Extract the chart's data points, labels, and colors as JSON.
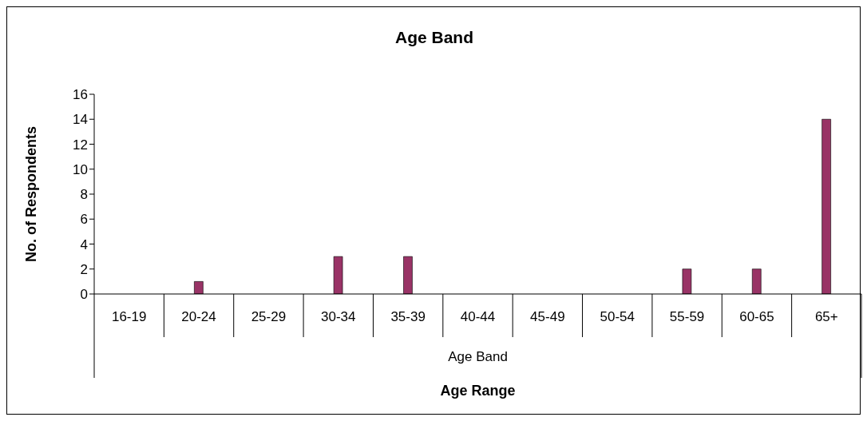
{
  "chart_data": {
    "type": "bar",
    "title": "Age Band",
    "xlabel": "Age Range",
    "ylabel": "No. of Respondents",
    "categories": [
      "16-19",
      "20-24",
      "25-29",
      "30-34",
      "35-39",
      "40-44",
      "45-49",
      "50-54",
      "55-59",
      "60-65",
      "65+"
    ],
    "values": [
      0,
      1,
      0,
      3,
      3,
      0,
      0,
      0,
      2,
      2,
      14
    ],
    "color": "#993366",
    "ylim": [
      0,
      16
    ],
    "yticks": [
      0,
      2,
      4,
      6,
      8,
      10,
      12,
      14,
      16
    ],
    "annotations": [
      "Age Band"
    ]
  }
}
